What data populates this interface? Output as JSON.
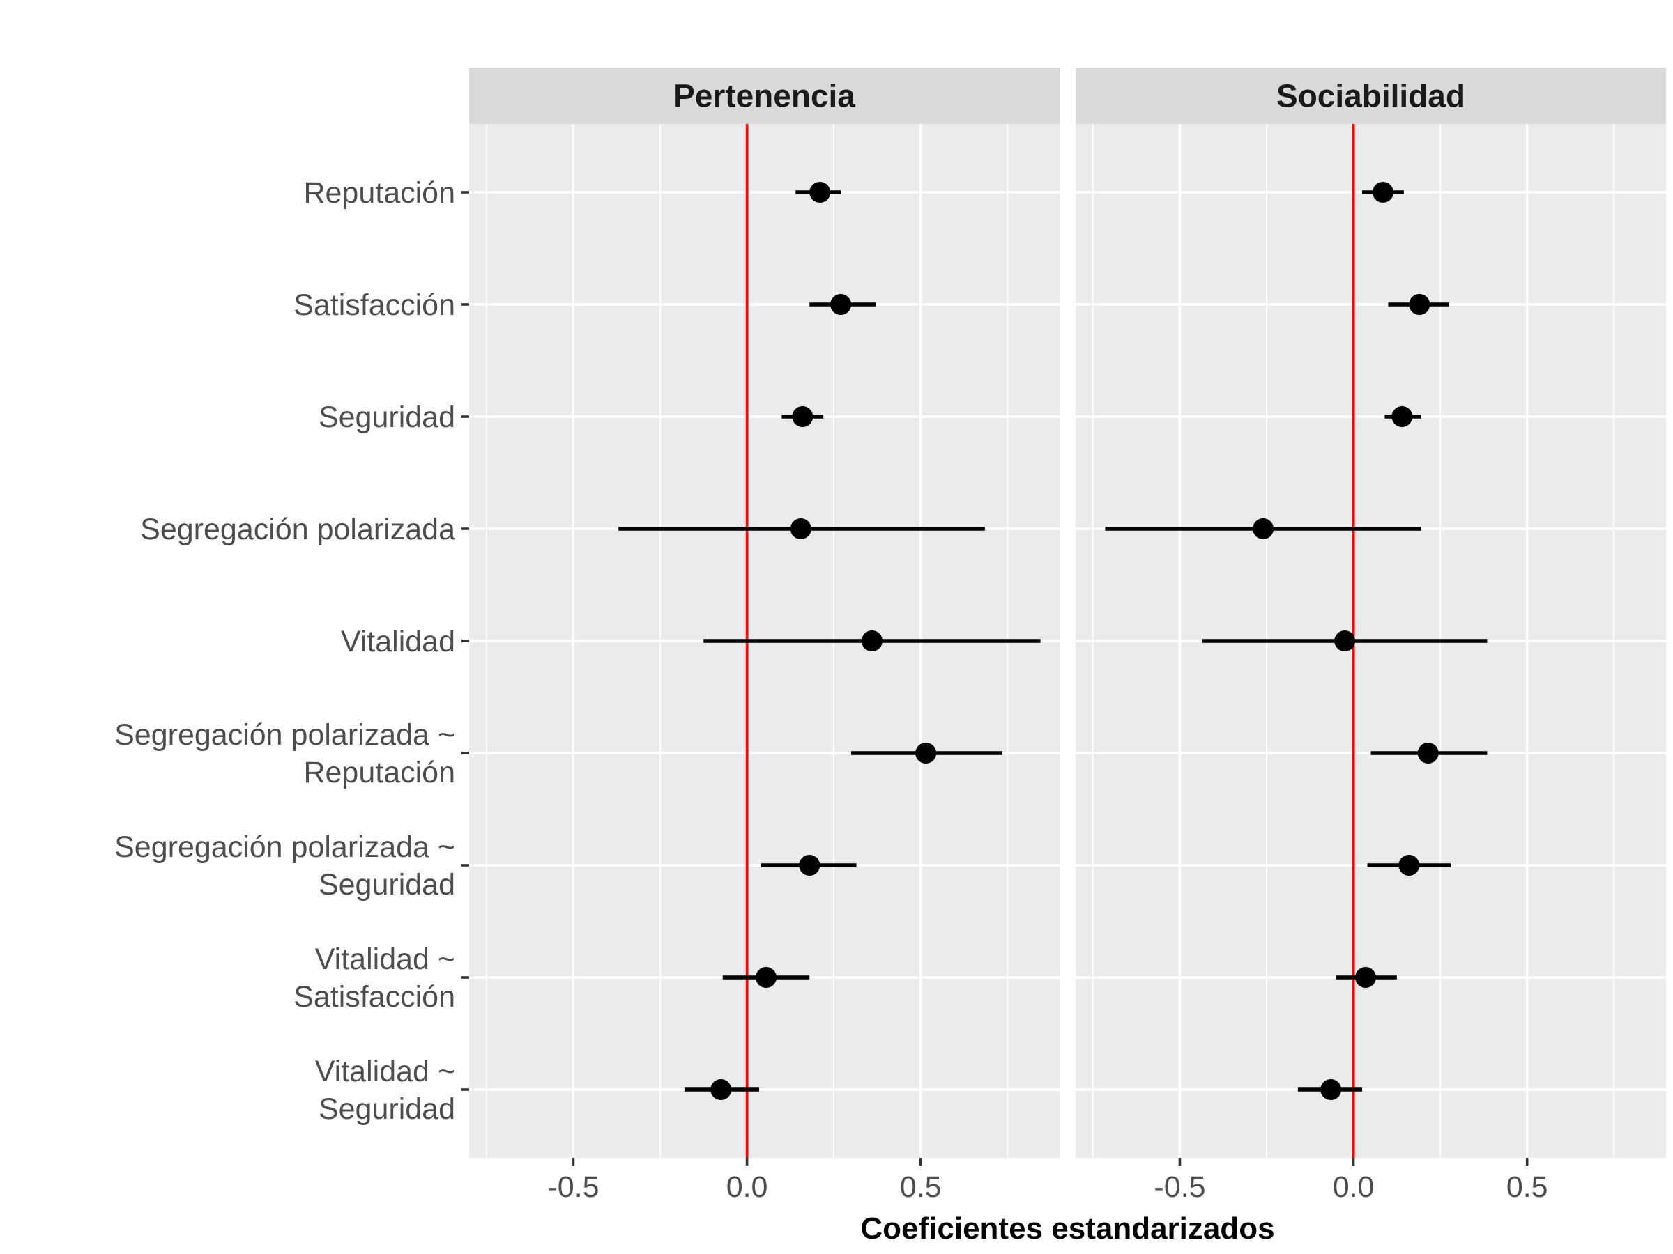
{
  "chart_data": {
    "type": "forest",
    "xlabel": "Coeficientes estandarizados",
    "xlim": [
      -0.8,
      0.9
    ],
    "x_ticks": [
      "-0.5",
      "0.0",
      "0.5"
    ],
    "x_tick_values": [
      -0.5,
      0.0,
      0.5
    ],
    "reference_line": {
      "x": 0,
      "color": "#ff0000"
    },
    "categories": [
      [
        "Reputación"
      ],
      [
        "Satisfacción"
      ],
      [
        "Seguridad"
      ],
      [
        "Segregación polarizada"
      ],
      [
        "Vitalidad"
      ],
      [
        "Segregación polarizada ~",
        "Reputación"
      ],
      [
        "Segregación polarizada ~",
        "Seguridad"
      ],
      [
        "Vitalidad ~",
        "Satisfacción"
      ],
      [
        "Vitalidad ~",
        "Seguridad"
      ]
    ],
    "panels": [
      {
        "title": "Pertenencia",
        "estimates": [
          0.21,
          0.27,
          0.16,
          0.155,
          0.36,
          0.515,
          0.18,
          0.055,
          -0.075
        ],
        "lower": [
          0.14,
          0.18,
          0.1,
          -0.37,
          -0.125,
          0.3,
          0.04,
          -0.07,
          -0.18
        ],
        "upper": [
          0.27,
          0.37,
          0.22,
          0.685,
          0.845,
          0.735,
          0.315,
          0.18,
          0.035
        ]
      },
      {
        "title": "Sociabilidad",
        "estimates": [
          0.085,
          0.19,
          0.14,
          -0.26,
          -0.025,
          0.215,
          0.16,
          0.035,
          -0.065
        ],
        "lower": [
          0.025,
          0.1,
          0.09,
          -0.715,
          -0.435,
          0.05,
          0.04,
          -0.05,
          -0.16
        ],
        "upper": [
          0.145,
          0.275,
          0.195,
          0.195,
          0.385,
          0.385,
          0.28,
          0.125,
          0.025
        ]
      }
    ],
    "grid": true,
    "colors": {
      "point": "#000000",
      "interval": "#000000",
      "reference": "#ff0000",
      "panel": "#ebebeb",
      "strip": "#d9d9d9"
    }
  }
}
